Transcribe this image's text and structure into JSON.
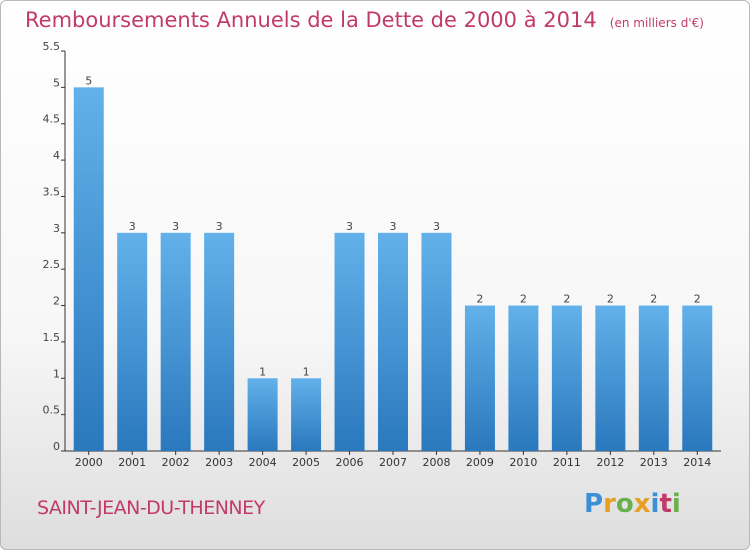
{
  "title": "Remboursements Annuels de la Dette de 2000 à 2014",
  "unit_label": "(en milliers d'€)",
  "city": "SAINT-JEAN-DU-THENNEY",
  "logo_text": "Proxiti",
  "colors": {
    "accent": "#c23a6a",
    "bar_top": "#62b1ea",
    "bar_bottom": "#2a78bd",
    "logo_letters": [
      "#3b8fd4",
      "#e8a020",
      "#6ab04c",
      "#e8a020",
      "#3b8fd4",
      "#c23a6a",
      "#6ab04c"
    ]
  },
  "chart_data": {
    "type": "bar",
    "title": "Remboursements Annuels de la Dette de 2000 à 2014",
    "xlabel": "",
    "ylabel": "",
    "categories": [
      "2000",
      "2001",
      "2002",
      "2003",
      "2004",
      "2005",
      "2006",
      "2007",
      "2008",
      "2009",
      "2010",
      "2011",
      "2012",
      "2013",
      "2014"
    ],
    "values": [
      5,
      3,
      3,
      3,
      1,
      1,
      3,
      3,
      3,
      2,
      2,
      2,
      2,
      2,
      2
    ],
    "data_labels": [
      "5",
      "3",
      "3",
      "3",
      "1",
      "1",
      "3",
      "3",
      "3",
      "2",
      "2",
      "2",
      "2",
      "2",
      "2"
    ],
    "ylim": [
      0,
      5.5
    ],
    "yticks": [
      0,
      0.5,
      1,
      1.5,
      2,
      2.5,
      3,
      3.5,
      4,
      4.5,
      5,
      5.5
    ],
    "ytick_labels": [
      "0",
      "0.5",
      "1",
      "1.5",
      "2",
      "2.5",
      "3",
      "3.5",
      "4",
      "4.5",
      "5",
      "5.5"
    ],
    "grid": false,
    "legend": "none"
  }
}
